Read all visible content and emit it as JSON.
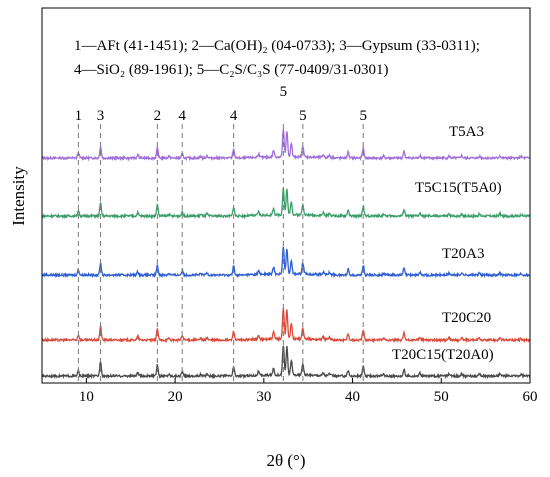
{
  "chart_data": {
    "type": "line",
    "title": "",
    "xlabel": "2θ (°)",
    "ylabel": "Intensity",
    "xlim": [
      5,
      60
    ],
    "xticks": [
      10,
      20,
      30,
      40,
      50,
      60
    ],
    "grid": false,
    "legend_text": {
      "line1": "1—AFt (41-1451); 2—Ca(OH)₂ (04-0733); 3—Gypsum (33-0311);",
      "line2": "4—SiO₂ (89-1961); 5—C₂S/C₃S (77-0409/31-0301)"
    },
    "reference_peaks": [
      {
        "label": "1",
        "x": 9.1
      },
      {
        "label": "3",
        "x": 11.6
      },
      {
        "label": "2",
        "x": 18.0
      },
      {
        "label": "4",
        "x": 20.8
      },
      {
        "label": "4",
        "x": 26.6
      },
      {
        "label": "5",
        "x": 32.2
      },
      {
        "label": "5",
        "x": 34.4
      },
      {
        "label": "5",
        "x": 41.2
      }
    ],
    "peaks_common": [
      {
        "x": 9.1,
        "h": 0.35
      },
      {
        "x": 11.6,
        "h": 0.1
      },
      {
        "x": 15.8,
        "h": 0.22
      },
      {
        "x": 18.0,
        "h": 0.55
      },
      {
        "x": 19.3,
        "h": 0.12
      },
      {
        "x": 20.8,
        "h": 0.28
      },
      {
        "x": 22.9,
        "h": 0.1
      },
      {
        "x": 23.6,
        "h": 0.15
      },
      {
        "x": 26.6,
        "h": 0.6
      },
      {
        "x": 29.4,
        "h": 0.25
      },
      {
        "x": 31.1,
        "h": 0.45
      },
      {
        "x": 32.2,
        "h": 1.8
      },
      {
        "x": 32.6,
        "h": 1.7
      },
      {
        "x": 33.1,
        "h": 0.9
      },
      {
        "x": 34.4,
        "h": 0.75
      },
      {
        "x": 36.7,
        "h": 0.18
      },
      {
        "x": 37.4,
        "h": 0.15
      },
      {
        "x": 39.5,
        "h": 0.4
      },
      {
        "x": 41.2,
        "h": 0.65
      },
      {
        "x": 43.5,
        "h": 0.12
      },
      {
        "x": 45.8,
        "h": 0.45
      },
      {
        "x": 47.6,
        "h": 0.18
      },
      {
        "x": 50.9,
        "h": 0.12
      },
      {
        "x": 52.3,
        "h": 0.15
      },
      {
        "x": 54.3,
        "h": 0.12
      },
      {
        "x": 56.6,
        "h": 0.15
      },
      {
        "x": 59.0,
        "h": 0.1
      }
    ],
    "series": [
      {
        "name": "T5A3",
        "color": "#a070d8",
        "gypsum": 0.75,
        "ch": 0.9,
        "main": 1.0
      },
      {
        "name": "T5C15(T5A0)",
        "color": "#3c9e6a",
        "gypsum": 0.85,
        "ch": 1.05,
        "main": 1.0
      },
      {
        "name": "T20A3",
        "color": "#2f5fd0",
        "gypsum": 0.8,
        "ch": 0.9,
        "main": 1.0
      },
      {
        "name": "T20C20",
        "color": "#d94a3a",
        "gypsum": 0.9,
        "ch": 1.0,
        "main": 1.15
      },
      {
        "name": "T20C15(T20A0)",
        "color": "#4a4a4a",
        "gypsum": 1.0,
        "ch": 1.0,
        "main": 1.1
      }
    ]
  }
}
